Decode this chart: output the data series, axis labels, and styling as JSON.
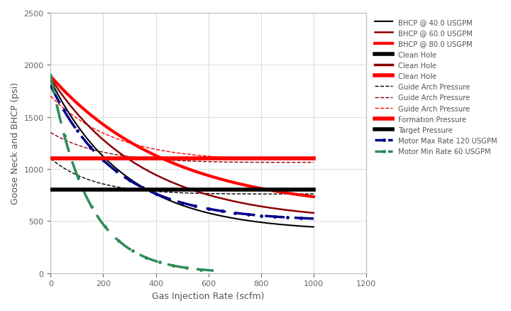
{
  "xlim": [
    0,
    1200
  ],
  "ylim": [
    0,
    2500
  ],
  "xlabel": "Gas Injection Rate (scfm)",
  "ylabel": "Goose Neck and BHCP (psi)",
  "xticks": [
    0,
    200,
    400,
    600,
    800,
    1000,
    1200
  ],
  "yticks": [
    0,
    500,
    1000,
    1500,
    2000,
    2500
  ],
  "formation_pressure": 1100,
  "target_pressure": 800,
  "background_color": "#ffffff",
  "grid_color": "#cccccc",
  "figsize": [
    7.2,
    4.39
  ],
  "dpi": 100,
  "bhcp_40_color": "#000000",
  "bhcp_60_color": "#8B0000",
  "bhcp_80_color": "#FF0000",
  "clean_hole_black_y": 800,
  "clean_hole_darkred_y": 800,
  "clean_hole_red_y": 1100,
  "navy_color": "#00008B",
  "green_color": "#2E8B57"
}
